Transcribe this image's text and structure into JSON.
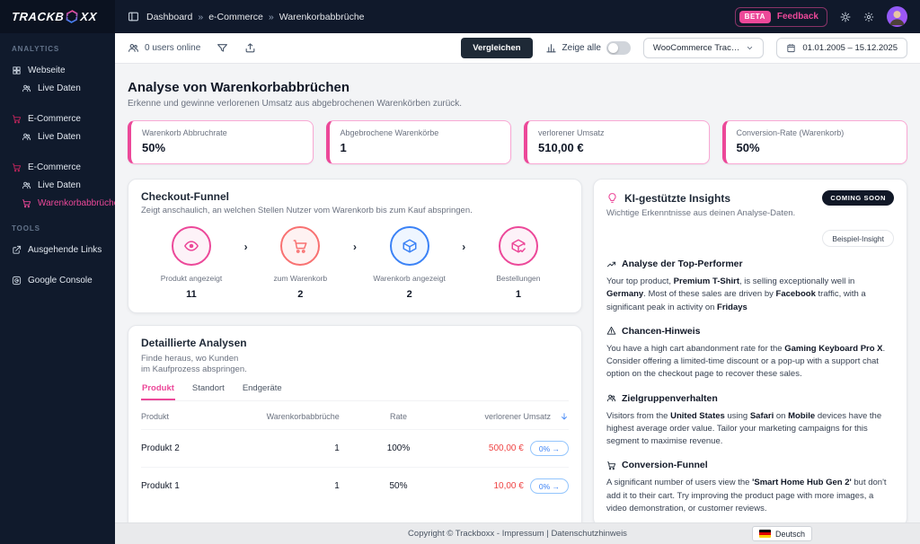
{
  "colors": {
    "accent_pink": "#ec4899",
    "funnel_red": "#f87171",
    "funnel_blue": "#3b82f6",
    "loss_red": "#ef4444"
  },
  "topbar": {
    "logo_part1": "TRACKB",
    "logo_part2": "XX",
    "breadcrumb": {
      "separator": "»",
      "segments": [
        "Dashboard",
        "e-Commerce",
        "Warenkorbabbrüche"
      ]
    },
    "beta": "BETA",
    "feedback": "Feedback"
  },
  "sidebar": {
    "sections": [
      {
        "label": "ANALYTICS",
        "items": [
          {
            "icon": "grid",
            "label": "Webseite"
          },
          {
            "icon": "users",
            "label": "Live Daten",
            "indent": true
          },
          {
            "icon": "cart",
            "label": "E-Commerce",
            "gap": true,
            "icon_color": "#c2255c"
          },
          {
            "icon": "users",
            "label": "Live Daten",
            "indent": true
          },
          {
            "icon": "cart",
            "label": "E-Commerce",
            "gap": true,
            "icon_color": "#c2255c"
          },
          {
            "icon": "users",
            "label": "Live Daten",
            "indent": true
          },
          {
            "icon": "cart",
            "label": "Warenkorbabbrüche",
            "indent": true,
            "active": true
          }
        ]
      },
      {
        "label": "TOOLS",
        "items": [
          {
            "icon": "external",
            "label": "Ausgehende Links"
          },
          {
            "icon": "google",
            "label": "Google Console",
            "gap": true
          }
        ]
      }
    ]
  },
  "toolbar": {
    "users_online": "0 users online",
    "compare_label": "Vergleichen",
    "show_all_label": "Zeige alle",
    "tracker_dropdown": "WooCommerce Trac…",
    "date_range": "01.01.2005 – 15.12.2025"
  },
  "page": {
    "title": "Analyse von Warenkorbabbrüchen",
    "subtitle": "Erkenne und gewinne verlorenen Umsatz aus abgebrochenen Warenkörben zurück."
  },
  "kpis": [
    {
      "label": "Warenkorb Abbruchrate",
      "value": "50%"
    },
    {
      "label": "Abgebrochene Warenkörbe",
      "value": "1"
    },
    {
      "label": "verlorener Umsatz",
      "value": "510,00 €"
    },
    {
      "label": "Conversion-Rate (Warenkorb)",
      "value": "50%"
    }
  ],
  "funnel": {
    "title": "Checkout-Funnel",
    "subtitle": "Zeigt anschaulich, an welchen Stellen Nutzer vom Warenkorb bis zum Kauf abspringen.",
    "steps": [
      {
        "icon": "eye",
        "label": "Produkt angezeigt",
        "value": "11",
        "color": "#ec4899",
        "bg": "#fdf2f8"
      },
      {
        "icon": "cart",
        "label": "zum Warenkorb",
        "value": "2",
        "color": "#f87171",
        "bg": "#fef2f2"
      },
      {
        "icon": "package",
        "label": "Warenkorb angezeigt",
        "value": "2",
        "color": "#3b82f6",
        "bg": "#eff6ff"
      },
      {
        "icon": "package-check",
        "label": "Bestellungen",
        "value": "1",
        "color": "#ec4899",
        "bg": "#fdf2f8"
      }
    ]
  },
  "insights": {
    "title": "KI-gestützte Insights",
    "badge": "COMING SOON",
    "subtitle": "Wichtige Erkenntnisse aus deinen Analyse-Daten.",
    "example_pill": "Beispiel-Insight",
    "sections": [
      {
        "icon": "trend",
        "title": "Analyse der Top-Performer",
        "text": [
          {
            "t": "Your top product, "
          },
          {
            "t": "Premium T-Shirt",
            "b": true
          },
          {
            "t": ", is selling exceptionally well in "
          },
          {
            "t": "Germany",
            "b": true
          },
          {
            "t": ". Most of these sales are driven by "
          },
          {
            "t": "Facebook",
            "b": true
          },
          {
            "t": " traffic, with a significant peak in activity on "
          },
          {
            "t": "Fridays",
            "b": true
          }
        ]
      },
      {
        "icon": "warning",
        "title": "Chancen-Hinweis",
        "text": [
          {
            "t": "You have a high cart abandonment rate for the "
          },
          {
            "t": "Gaming Keyboard Pro X",
            "b": true
          },
          {
            "t": ". Consider offering a limited-time discount or a pop-up with a support chat option on the checkout page to recover these sales."
          }
        ]
      },
      {
        "icon": "users",
        "title": "Zielgruppenverhalten",
        "text": [
          {
            "t": "Visitors from the "
          },
          {
            "t": "United States",
            "b": true
          },
          {
            "t": " using "
          },
          {
            "t": "Safari",
            "b": true
          },
          {
            "t": " on "
          },
          {
            "t": "Mobile",
            "b": true
          },
          {
            "t": " devices have the highest average order value. Tailor your marketing campaigns for this segment to maximise revenue."
          }
        ]
      },
      {
        "icon": "cart",
        "title": "Conversion-Funnel",
        "text": [
          {
            "t": "A significant number of users view the "
          },
          {
            "t": "'Smart Home Hub Gen 2'",
            "b": true
          },
          {
            "t": " but don't add it to their cart. Try improving the product page with more images, a video demonstration, or customer reviews."
          }
        ]
      }
    ]
  },
  "details": {
    "title": "Detaillierte Analysen",
    "subtitle_line1": "Finde heraus, wo Kunden",
    "subtitle_line2": "im Kaufprozess abspringen.",
    "tabs": [
      {
        "label": "Produkt",
        "active": true
      },
      {
        "label": "Standort"
      },
      {
        "label": "Endgeräte"
      }
    ],
    "table": {
      "headers": [
        "Produkt",
        "Warenkorbabbrüche",
        "Rate",
        "verlorener Umsatz"
      ],
      "sorted_column": "verlorener Umsatz",
      "rows": [
        {
          "product": "Produkt 2",
          "abbrueche": "1",
          "rate": "100%",
          "umsatz": "500,00 €",
          "pill": "0% →"
        },
        {
          "product": "Produkt 1",
          "abbrueche": "1",
          "rate": "50%",
          "umsatz": "10,00 €",
          "pill": "0% →"
        }
      ]
    }
  },
  "footer": {
    "copyright": "Copyright © Trackboxx - Impressum | Datenschutzhinweis",
    "language": "Deutsch"
  }
}
